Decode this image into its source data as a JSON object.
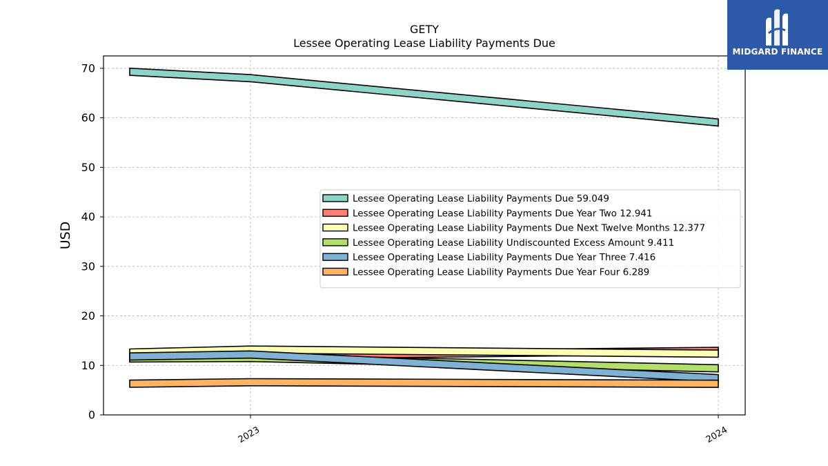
{
  "chart_data": {
    "type": "area",
    "title": "GETY",
    "subtitle": "Lessee Operating Lease Liability Payments Due",
    "xlabel": "",
    "ylabel": "USD",
    "x": [
      "2022",
      "2023",
      "2024"
    ],
    "x_tick_labels": [
      "2023",
      "2024"
    ],
    "ylim": [
      0,
      72.5
    ],
    "yticks": [
      "0",
      "10",
      "20",
      "30",
      "40",
      "50",
      "60",
      "70"
    ],
    "grid": true,
    "legend_position": "center-right",
    "series": [
      {
        "name": "Lessee Operating Lease Liability Payments Due",
        "legend_label": "Lessee Operating Lease Liability Payments Due  59.049",
        "color": "#8dd3c7",
        "values": [
          69.3,
          68.0,
          59.049
        ]
      },
      {
        "name": "Lessee Operating Lease Liability Payments Due Year Two",
        "legend_label": "Lessee Operating Lease Liability Payments Due Year Two  12.941",
        "color": "#fb8072",
        "values": [
          11.6,
          12.0,
          12.941
        ]
      },
      {
        "name": "Lessee Operating Lease Liability Payments Due Next Twelve Months",
        "legend_label": "Lessee Operating Lease Liability Payments Due Next Twelve Months  12.377",
        "color": "#ffffb3",
        "values": [
          12.6,
          13.2,
          12.377
        ]
      },
      {
        "name": "Lessee Operating Lease Liability Undiscounted Excess Amount",
        "legend_label": "Lessee Operating Lease Liability Undiscounted Excess Amount  9.411",
        "color": "#b3de69",
        "values": [
          11.4,
          11.5,
          9.411
        ]
      },
      {
        "name": "Lessee Operating Lease Liability Payments Due Year Three",
        "legend_label": "Lessee Operating Lease Liability Payments Due Year Three  7.416",
        "color": "#80b1d3",
        "values": [
          11.8,
          12.2,
          7.416
        ]
      },
      {
        "name": "Lessee Operating Lease Liability Payments Due Year Four",
        "legend_label": "Lessee Operating Lease Liability Payments Due Year Four  6.289",
        "color": "#fdb462",
        "values": [
          6.3,
          6.6,
          6.289
        ]
      }
    ]
  },
  "logo": {
    "brand_text": "MIDGARD FINANCE",
    "icon": "midgard-logo-icon",
    "bg_color": "#2d5aa8"
  }
}
